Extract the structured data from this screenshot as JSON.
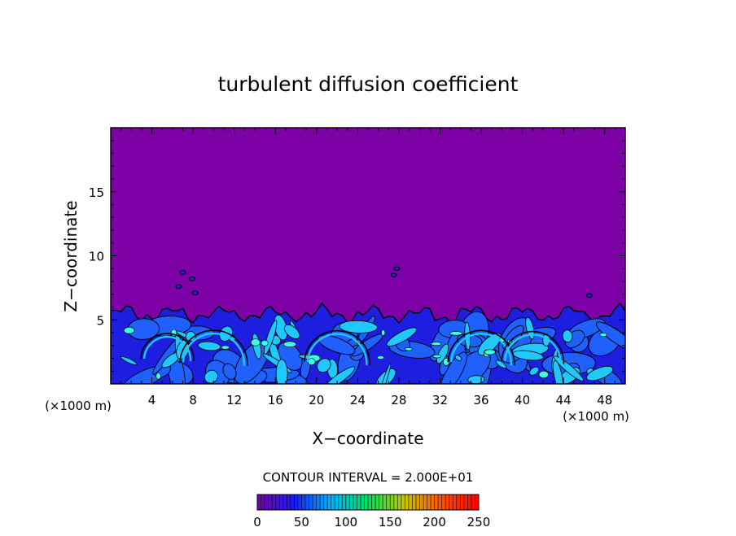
{
  "chart_data": {
    "type": "heatmap",
    "title": "turbulent diffusion coefficient",
    "xlabel": "X−coordinate",
    "ylabel": "Z−coordinate",
    "x_unit": "(×1000 m)",
    "z_unit": "(×1000 m)",
    "xlim": [
      0,
      50
    ],
    "ylim": [
      0,
      20
    ],
    "x_ticks": [
      "4",
      "8",
      "12",
      "16",
      "20",
      "24",
      "28",
      "32",
      "36",
      "40",
      "44",
      "48"
    ],
    "y_ticks": [
      "5",
      "10",
      "15"
    ],
    "contour_interval_text": "CONTOUR INTERVAL =  2.000E+01",
    "contour_interval": 20,
    "colorbar": {
      "min": 0,
      "max": 250,
      "tick_labels": [
        "0",
        "50",
        "100",
        "150",
        "200",
        "250"
      ],
      "colors": [
        "#7a00aa",
        "#1a1aff",
        "#00b4ff",
        "#00e060",
        "#c8c800",
        "#ff5000",
        "#ff0000"
      ]
    },
    "background_color": "#7c00a6",
    "turbulent_layer_top_z": 5.8,
    "field_colors": {
      "low": "#7c00a6",
      "mid": "#1e1ee0",
      "midhigh": "#2060ff",
      "high": "#20c8ff",
      "peak": "#40ffe0"
    }
  }
}
